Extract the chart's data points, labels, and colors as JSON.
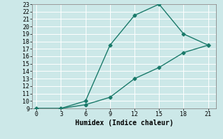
{
  "title": "",
  "xlabel": "Humidex (Indice chaleur)",
  "ylabel": "",
  "background_color": "#cce8e8",
  "grid_color": "#ffffff",
  "line_color": "#1a7a6a",
  "line1_x": [
    0,
    3,
    6,
    9,
    12,
    15,
    18,
    21
  ],
  "line1_y": [
    9,
    9,
    10,
    17.5,
    21.5,
    23,
    19,
    17.5
  ],
  "line2_x": [
    0,
    3,
    6,
    9,
    12,
    15,
    18,
    21
  ],
  "line2_y": [
    9,
    9,
    9.5,
    10.5,
    13,
    14.5,
    16.5,
    17.5
  ],
  "xlim": [
    -0.5,
    22
  ],
  "ylim": [
    9,
    23
  ],
  "xticks": [
    0,
    3,
    6,
    9,
    12,
    15,
    18,
    21
  ],
  "yticks": [
    9,
    10,
    11,
    12,
    13,
    14,
    15,
    16,
    17,
    18,
    19,
    20,
    21,
    22,
    23
  ],
  "marker": "D",
  "markersize": 2.5,
  "linewidth": 1.0,
  "xlabel_fontsize": 7,
  "tick_fontsize": 6
}
